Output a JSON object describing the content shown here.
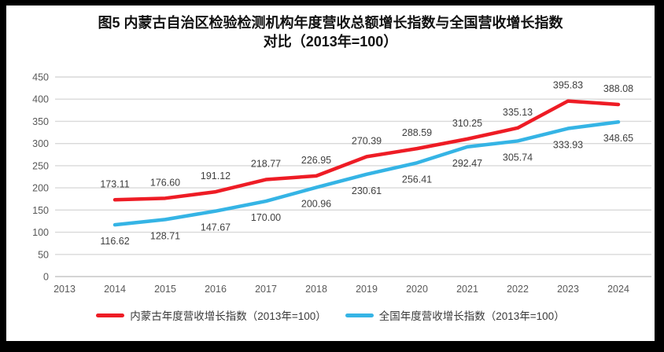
{
  "chart_data": {
    "type": "line",
    "title_line1": "图5  内蒙古自治区检验检测机构年度营收总额增长指数与全国营收增长指数",
    "title_line2": "对比（2013年=100）",
    "categories": [
      "2013",
      "2014",
      "2015",
      "2016",
      "2017",
      "2018",
      "2019",
      "2020",
      "2021",
      "2022",
      "2023",
      "2024"
    ],
    "ylim": [
      0,
      450
    ],
    "yticks": [
      0,
      50,
      100,
      150,
      200,
      250,
      300,
      350,
      400,
      450
    ],
    "grid": true,
    "legend_position": "bottom",
    "series": [
      {
        "name": "内蒙古年度营收增长指数（2013年=100）",
        "color": "#ee1c25",
        "start_category_index": 1,
        "label_position": "above",
        "values": [
          173.11,
          176.6,
          191.12,
          218.77,
          226.95,
          270.39,
          288.59,
          310.25,
          335.13,
          395.83,
          388.08
        ]
      },
      {
        "name": "全国年度营收增长指数（2013年=100）",
        "color": "#35b4e5",
        "start_category_index": 1,
        "label_position": "below",
        "values": [
          116.62,
          128.71,
          147.67,
          170.0,
          200.96,
          230.61,
          256.41,
          292.47,
          305.74,
          333.93,
          348.65
        ]
      }
    ],
    "colors": {
      "axis_text": "#595959",
      "data_label": "#404040",
      "gridline": "#d9d9d9",
      "axis_line": "#c6c6c6",
      "background": "#ffffff",
      "frame": "#000000"
    }
  }
}
